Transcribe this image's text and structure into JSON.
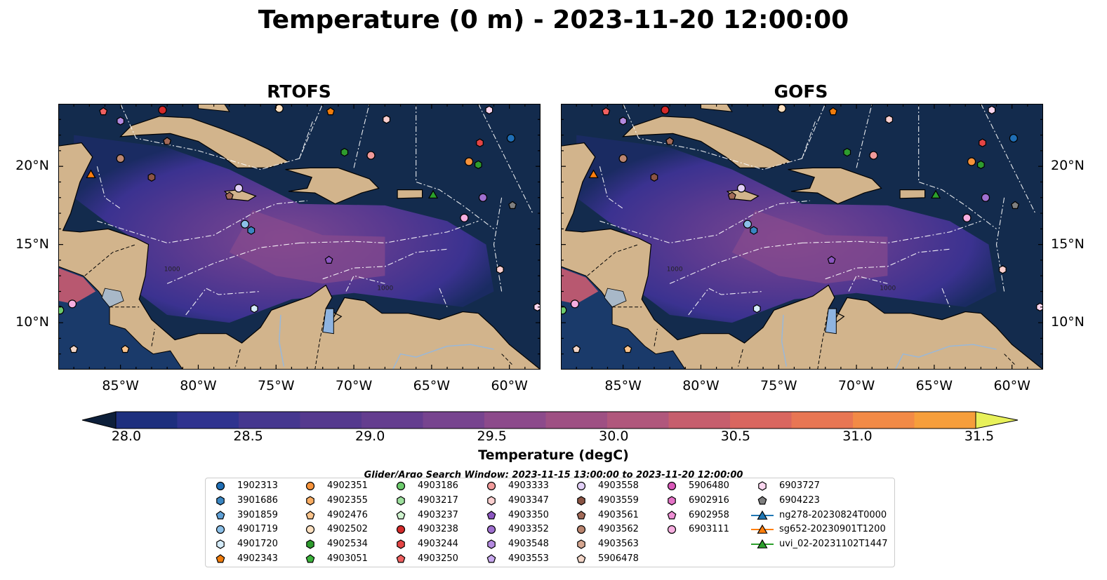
{
  "title": "Temperature (0 m) - 2023-11-20 12:00:00",
  "panels": [
    {
      "title": "RTOFS"
    },
    {
      "title": "GOFS"
    }
  ],
  "map": {
    "lon_ticks": [
      "85°W",
      "80°W",
      "75°W",
      "70°W",
      "65°W",
      "60°W"
    ],
    "lat_ticks": [
      "20°N",
      "15°N",
      "10°N"
    ],
    "lon_range": [
      -89,
      -58
    ],
    "lat_range": [
      7,
      24
    ],
    "contour_labels": [
      "1000",
      "1000"
    ]
  },
  "colorbar": {
    "label": "Temperature (degC)",
    "tick_labels": [
      "28.0",
      "28.5",
      "29.0",
      "29.5",
      "30.0",
      "30.5",
      "31.0",
      "31.5"
    ],
    "ticks": [
      28.0,
      28.5,
      29.0,
      29.5,
      30.0,
      30.5,
      31.0,
      31.5
    ],
    "range": [
      28.0,
      31.5
    ],
    "step": 0.25,
    "extend": "both",
    "colors": [
      "#0d1f3a",
      "#122a5e",
      "#1d2f7e",
      "#2f338f",
      "#45378f",
      "#55398e",
      "#643d8f",
      "#77448f",
      "#8c4a8b",
      "#9e5083",
      "#b0577c",
      "#c65e6d",
      "#d9665f",
      "#e87653",
      "#f28a46",
      "#f69e3b",
      "#f8b83a",
      "#f5d24a",
      "#e8f15a"
    ]
  },
  "search_window": "Glider/Argo Search Window: 2023-11-15 13:00:00 to 2023-11-20 12:00:00",
  "legend": [
    {
      "label": "1902313",
      "marker": "circle",
      "color": "#1f6eb5"
    },
    {
      "label": "3901686",
      "marker": "hexagon",
      "color": "#3a86c2"
    },
    {
      "label": "3901859",
      "marker": "pentagon",
      "color": "#5fa0d6"
    },
    {
      "label": "4901719",
      "marker": "circle",
      "color": "#8cc0e8"
    },
    {
      "label": "4901720",
      "marker": "hexagon",
      "color": "#d5ecfa"
    },
    {
      "label": "4902343",
      "marker": "pentagon",
      "color": "#f07c0c"
    },
    {
      "label": "4902351",
      "marker": "circle",
      "color": "#f7933b"
    },
    {
      "label": "4902355",
      "marker": "hexagon",
      "color": "#f9ad63"
    },
    {
      "label": "4902476",
      "marker": "pentagon",
      "color": "#fcc48c"
    },
    {
      "label": "4902502",
      "marker": "circle",
      "color": "#fde0c0"
    },
    {
      "label": "4902534",
      "marker": "hexagon",
      "color": "#2e9c2e"
    },
    {
      "label": "4903051",
      "marker": "pentagon",
      "color": "#3cb43c"
    },
    {
      "label": "4903186",
      "marker": "circle",
      "color": "#6ccb6c"
    },
    {
      "label": "4903217",
      "marker": "hexagon",
      "color": "#9ee09e"
    },
    {
      "label": "4903237",
      "marker": "pentagon",
      "color": "#cff3cf"
    },
    {
      "label": "4903238",
      "marker": "circle",
      "color": "#d42a2a"
    },
    {
      "label": "4903244",
      "marker": "hexagon",
      "color": "#e54545"
    },
    {
      "label": "4903250",
      "marker": "pentagon",
      "color": "#f06060"
    },
    {
      "label": "4903333",
      "marker": "circle",
      "color": "#f09a9a"
    },
    {
      "label": "4903347",
      "marker": "hexagon",
      "color": "#fbd0d0"
    },
    {
      "label": "4903350",
      "marker": "pentagon",
      "color": "#8b55c0"
    },
    {
      "label": "4903352",
      "marker": "circle",
      "color": "#a070d0"
    },
    {
      "label": "4903548",
      "marker": "hexagon",
      "color": "#b48ae0"
    },
    {
      "label": "4903553",
      "marker": "pentagon",
      "color": "#c8a8ee"
    },
    {
      "label": "4903558",
      "marker": "circle",
      "color": "#e2d0f7"
    },
    {
      "label": "4903559",
      "marker": "hexagon",
      "color": "#8a5444"
    },
    {
      "label": "4903561",
      "marker": "pentagon",
      "color": "#a26a58"
    },
    {
      "label": "4903562",
      "marker": "circle",
      "color": "#bb8670"
    },
    {
      "label": "4903563",
      "marker": "hexagon",
      "color": "#d5a690"
    },
    {
      "label": "5906478",
      "marker": "pentagon",
      "color": "#f3d6c8"
    },
    {
      "label": "5906480",
      "marker": "circle",
      "color": "#d958b8"
    },
    {
      "label": "6902916",
      "marker": "hexagon",
      "color": "#e472c6"
    },
    {
      "label": "6902958",
      "marker": "pentagon",
      "color": "#ee8ed4"
    },
    {
      "label": "6903111",
      "marker": "circle",
      "color": "#f6aee0"
    },
    {
      "label": "6903727",
      "marker": "hexagon",
      "color": "#fbd6ef"
    },
    {
      "label": "6904223",
      "marker": "pentagon",
      "color": "#7f7f7f"
    },
    {
      "label": "ng278-20230824T0000",
      "marker": "triangle-line",
      "color": "#1f77b4"
    },
    {
      "label": "sg652-20230901T1200",
      "marker": "triangle-line",
      "color": "#ff7f0e"
    },
    {
      "label": "uvi_02-20231102T1447",
      "marker": "triangle-line",
      "color": "#2ca02c"
    }
  ],
  "chart_data": [
    {
      "type": "heatmap",
      "title": "RTOFS",
      "variable": "Temperature (degC)",
      "depth": "0 m",
      "time": "2023-11-20 12:00:00",
      "xlim": [
        -89,
        -58
      ],
      "ylim": [
        7,
        24
      ],
      "x_ticks": [
        -85,
        -80,
        -75,
        -70,
        -65,
        -60
      ],
      "y_ticks": [
        20,
        15,
        10
      ],
      "color_range": [
        28.0,
        31.5
      ],
      "platforms": [
        {
          "id": "4903250",
          "lon": -86.1,
          "lat": 23.5
        },
        {
          "id": "4903238",
          "lon": -82.3,
          "lat": 23.6
        },
        {
          "id": "4902502",
          "lon": -74.8,
          "lat": 23.7
        },
        {
          "id": "4902343",
          "lon": -71.5,
          "lat": 23.5
        },
        {
          "id": "4903347",
          "lon": -67.9,
          "lat": 23.0
        },
        {
          "id": "6903727",
          "lon": -61.3,
          "lat": 23.6
        },
        {
          "id": "4903548",
          "lon": -85.0,
          "lat": 22.9
        },
        {
          "id": "4903561",
          "lon": -82.0,
          "lat": 21.6
        },
        {
          "id": "1902313",
          "lon": -59.9,
          "lat": 21.8
        },
        {
          "id": "4903244",
          "lon": -61.9,
          "lat": 21.5
        },
        {
          "id": "4903562",
          "lon": -85.0,
          "lat": 20.5
        },
        {
          "id": "4902534",
          "lon": -70.6,
          "lat": 20.9
        },
        {
          "id": "4903333",
          "lon": -68.9,
          "lat": 20.7
        },
        {
          "id": "4902351",
          "lon": -62.6,
          "lat": 20.3
        },
        {
          "id": "4902534",
          "lon": -62.0,
          "lat": 20.1
        },
        {
          "id": "sg652-20230901T1200",
          "lon": -86.9,
          "lat": 19.5
        },
        {
          "id": "4903559",
          "lon": -83.0,
          "lat": 19.3
        },
        {
          "id": "4903558",
          "lon": -77.4,
          "lat": 18.6
        },
        {
          "id": "4903561",
          "lon": -78.0,
          "lat": 18.1
        },
        {
          "id": "uvi_02-20231102T1447",
          "lon": -64.9,
          "lat": 18.2
        },
        {
          "id": "4903352",
          "lon": -61.7,
          "lat": 18.0
        },
        {
          "id": "6904223",
          "lon": -59.8,
          "lat": 17.5
        },
        {
          "id": "4901719",
          "lon": -77.0,
          "lat": 16.3
        },
        {
          "id": "3901686",
          "lon": -76.6,
          "lat": 15.9
        },
        {
          "id": "6903111",
          "lon": -62.9,
          "lat": 16.7
        },
        {
          "id": "4903350",
          "lon": -71.6,
          "lat": 14.0
        },
        {
          "id": "4903347",
          "lon": -60.6,
          "lat": 13.4
        },
        {
          "id": "6903111",
          "lon": -88.1,
          "lat": 11.2
        },
        {
          "id": "4903186",
          "lon": -88.9,
          "lat": 10.8
        },
        {
          "id": "4901720",
          "lon": -76.4,
          "lat": 10.9
        },
        {
          "id": "6903727",
          "lon": -58.2,
          "lat": 11.0
        },
        {
          "id": "5906478",
          "lon": -88.0,
          "lat": 8.3
        },
        {
          "id": "4902476",
          "lon": -84.7,
          "lat": 8.3
        }
      ]
    },
    {
      "type": "heatmap",
      "title": "GOFS",
      "variable": "Temperature (degC)",
      "depth": "0 m",
      "time": "2023-11-20 12:00:00",
      "xlim": [
        -89,
        -58
      ],
      "ylim": [
        7,
        24
      ],
      "x_ticks": [
        -85,
        -80,
        -75,
        -70,
        -65,
        -60
      ],
      "y_ticks": [
        20,
        15,
        10
      ],
      "color_range": [
        28.0,
        31.5
      ],
      "platforms": "same as RTOFS"
    }
  ]
}
